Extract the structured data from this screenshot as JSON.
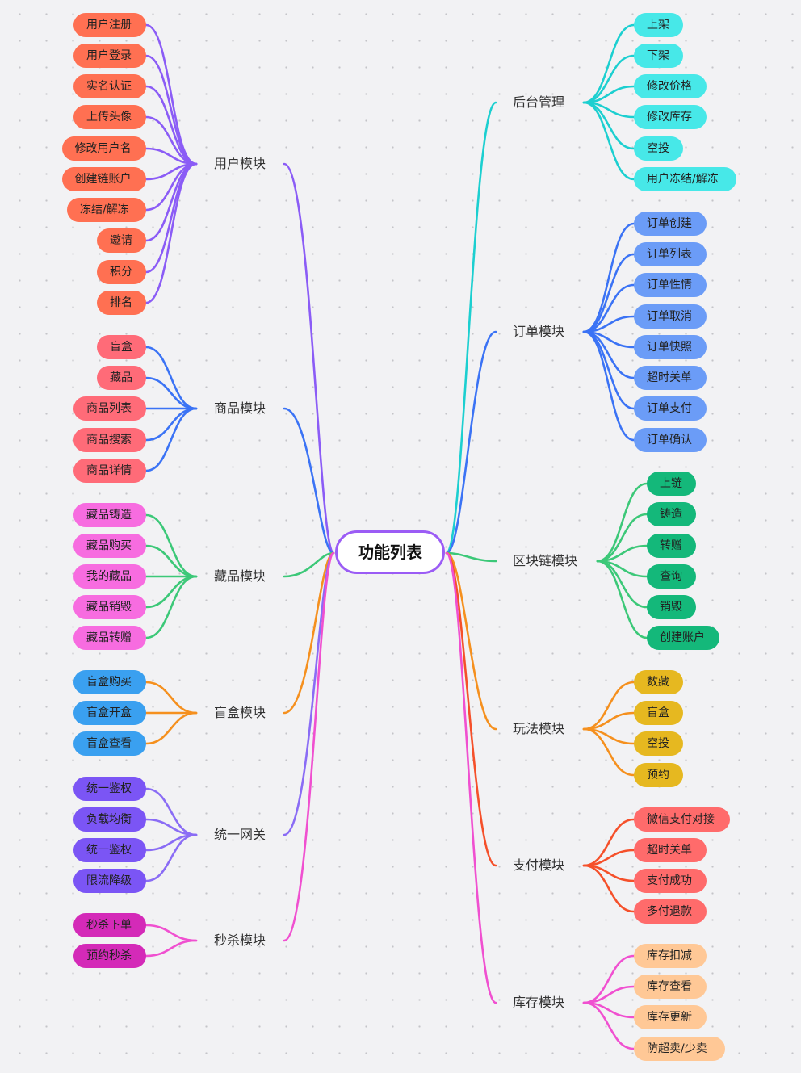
{
  "root": {
    "label": "功能列表",
    "border_color": "#9b5cf5"
  },
  "left": [
    {
      "label": "用户模块",
      "line_color": "#8b5cf6",
      "pill_color": "#ff7052",
      "items": [
        "用户注册",
        "用户登录",
        "实名认证",
        "上传头像",
        "修改用户名",
        "创建链账户",
        "冻结/解冻",
        "邀请",
        "积分",
        "排名"
      ]
    },
    {
      "label": "商品模块",
      "line_color": "#3b73f5",
      "pill_color": "#ff6b78",
      "items": [
        "盲盒",
        "藏品",
        "商品列表",
        "商品搜索",
        "商品详情"
      ]
    },
    {
      "label": "藏品模块",
      "line_color": "#3cc878",
      "pill_color": "#f76ce0",
      "items": [
        "藏品铸造",
        "藏品购买",
        "我的藏品",
        "藏品销毁",
        "藏品转赠"
      ]
    },
    {
      "label": "盲盒模块",
      "line_color": "#f5901e",
      "pill_color": "#3aa0f0",
      "items": [
        "盲盒购买",
        "盲盒开盒",
        "盲盒查看"
      ]
    },
    {
      "label": "统一网关",
      "line_color": "#8a6cf5",
      "pill_color": "#7b55f5",
      "items": [
        "统一鉴权",
        "负载均衡",
        "统一鉴权",
        "限流降级"
      ]
    },
    {
      "label": "秒杀模块",
      "line_color": "#f050d0",
      "pill_color": "#d42ab8",
      "items": [
        "秒杀下单",
        "预约秒杀"
      ]
    }
  ],
  "right": [
    {
      "label": "后台管理",
      "line_color": "#1ccfd0",
      "pill_color": "#47e8e8",
      "items": [
        "上架",
        "下架",
        "修改价格",
        "修改库存",
        "空投",
        "用户冻结/解冻"
      ]
    },
    {
      "label": "订单模块",
      "line_color": "#3b73f5",
      "pill_color": "#6b9cf7",
      "items": [
        "订单创建",
        "订单列表",
        "订单性情",
        "订单取消",
        "订单快照",
        "超时关单",
        "订单支付",
        "订单确认"
      ]
    },
    {
      "label": "区块链模块",
      "line_color": "#3cc878",
      "pill_color": "#14b87a",
      "items": [
        "上链",
        "铸造",
        "转赠",
        "查询",
        "销毁",
        "创建账户"
      ]
    },
    {
      "label": "玩法模块",
      "line_color": "#f5901e",
      "pill_color": "#e6b820",
      "items": [
        "数藏",
        "盲盒",
        "空投",
        "预约"
      ]
    },
    {
      "label": "支付模块",
      "line_color": "#f5502a",
      "pill_color": "#ff6b6b",
      "items": [
        "微信支付对接",
        "超时关单",
        "支付成功",
        "多付退款"
      ]
    },
    {
      "label": "库存模块",
      "line_color": "#f050d0",
      "pill_color": "#ffc896",
      "items": [
        "库存扣减",
        "库存查看",
        "库存更新",
        "防超卖/少卖"
      ]
    }
  ]
}
